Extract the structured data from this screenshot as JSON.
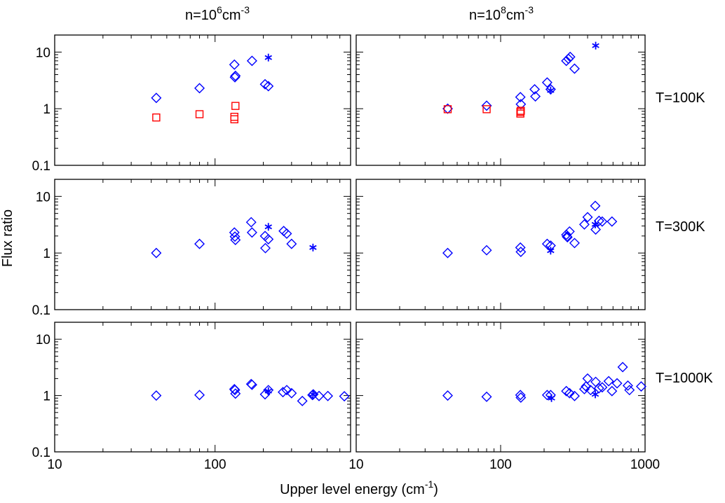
{
  "colors": {
    "diamond": "#0000ff",
    "square": "#ff0000",
    "star": "#0000ff",
    "axis": "#000000"
  },
  "columns": [
    {
      "base": "n=10",
      "exp": "6",
      "unit": "cm",
      "unit_exp": "-3"
    },
    {
      "base": "n=10",
      "exp": "8",
      "unit": "cm",
      "unit_exp": "-3"
    }
  ],
  "rows": [
    "T=100K",
    "T=300K",
    "T=1000K"
  ],
  "ylabel": "Flux ratio",
  "xlabel": {
    "text": "Upper level energy (cm",
    "sup": "-1",
    "close": ")"
  },
  "xticks": [
    "10",
    "100",
    "1000"
  ],
  "yticks": [
    "0.1",
    "1",
    "10"
  ],
  "chart_data": [
    {
      "type": "scatter",
      "panel": "n=10^6 cm^-3, T=100K",
      "xlim": [
        10,
        700
      ],
      "ylim": [
        0.1,
        20
      ],
      "xscale": "log",
      "yscale": "log",
      "series": [
        {
          "marker": "diamond",
          "color": "blue",
          "x": [
            43,
            80,
            132,
            133,
            134,
            170,
            205,
            215
          ],
          "y": [
            1.55,
            2.3,
            6.0,
            3.6,
            3.8,
            7.0,
            2.7,
            2.5
          ]
        },
        {
          "marker": "square",
          "color": "red",
          "x": [
            43,
            80,
            132,
            132,
            134
          ],
          "y": [
            0.7,
            0.8,
            0.65,
            0.72,
            1.12
          ]
        },
        {
          "marker": "star",
          "color": "blue",
          "x": [
            215
          ],
          "y": [
            8.0
          ]
        }
      ]
    },
    {
      "type": "scatter",
      "panel": "n=10^8 cm^-3, T=100K",
      "xlim": [
        10,
        1000
      ],
      "ylim": [
        0.1,
        20
      ],
      "xscale": "log",
      "yscale": "log",
      "series": [
        {
          "marker": "diamond",
          "color": "blue",
          "x": [
            43,
            80,
            137,
            138,
            172,
            174,
            210,
            222,
            285,
            295,
            303,
            325
          ],
          "y": [
            1.0,
            1.13,
            1.6,
            1.2,
            2.2,
            1.65,
            2.9,
            2.2,
            7.0,
            7.6,
            8.2,
            5.1
          ]
        },
        {
          "marker": "square",
          "color": "red",
          "x": [
            43,
            80,
            137,
            137,
            138
          ],
          "y": [
            0.98,
            0.98,
            0.82,
            0.88,
            0.92
          ]
        },
        {
          "marker": "star",
          "color": "blue",
          "x": [
            222,
            455
          ],
          "y": [
            2.1,
            13.0
          ]
        }
      ]
    },
    {
      "type": "scatter",
      "panel": "n=10^6 cm^-3, T=300K",
      "xlim": [
        10,
        700
      ],
      "ylim": [
        0.1,
        20
      ],
      "xscale": "log",
      "yscale": "log",
      "series": [
        {
          "marker": "diamond",
          "color": "blue",
          "x": [
            43,
            80,
            132,
            133,
            134,
            168,
            170,
            205,
            206,
            215,
            268,
            280,
            300
          ],
          "y": [
            1.0,
            1.45,
            2.3,
            1.95,
            1.7,
            3.5,
            2.3,
            2.0,
            1.22,
            1.75,
            2.45,
            2.2,
            1.45
          ]
        },
        {
          "marker": "star",
          "color": "blue",
          "x": [
            215,
            408
          ],
          "y": [
            2.9,
            1.25
          ]
        }
      ]
    },
    {
      "type": "scatter",
      "panel": "n=10^8 cm^-3, T=300K",
      "xlim": [
        10,
        1000
      ],
      "ylim": [
        0.1,
        20
      ],
      "xscale": "log",
      "yscale": "log",
      "series": [
        {
          "marker": "diamond",
          "color": "blue",
          "x": [
            43,
            80,
            137,
            138,
            210,
            222,
            285,
            288,
            290,
            300,
            325,
            380,
            400,
            452,
            455,
            480,
            505,
            590
          ],
          "y": [
            1.0,
            1.12,
            1.25,
            1.05,
            1.45,
            1.35,
            2.1,
            1.95,
            1.9,
            2.4,
            1.5,
            3.2,
            4.3,
            6.8,
            2.6,
            3.7,
            3.6,
            3.6
          ]
        },
        {
          "marker": "star",
          "color": "blue",
          "x": [
            222,
            452
          ],
          "y": [
            1.1,
            3.2
          ]
        }
      ]
    },
    {
      "type": "scatter",
      "panel": "n=10^6 cm^-3, T=1000K",
      "xlim": [
        10,
        700
      ],
      "ylim": [
        0.1,
        20
      ],
      "xscale": "log",
      "yscale": "log",
      "series": [
        {
          "marker": "diamond",
          "color": "blue",
          "x": [
            43,
            80,
            132,
            133,
            134,
            168,
            170,
            205,
            215,
            265,
            280,
            300,
            350,
            405,
            410,
            445,
            505,
            640
          ],
          "y": [
            1.0,
            1.02,
            1.3,
            1.25,
            1.08,
            1.6,
            1.55,
            1.05,
            1.25,
            1.15,
            1.25,
            1.1,
            0.8,
            1.02,
            1.05,
            0.98,
            0.98,
            0.97
          ]
        },
        {
          "marker": "star",
          "color": "blue",
          "x": [
            215,
            408
          ],
          "y": [
            1.2,
            1.05
          ]
        }
      ]
    },
    {
      "type": "scatter",
      "panel": "n=10^8 cm^-3, T=1000K",
      "xlim": [
        10,
        1000
      ],
      "ylim": [
        0.1,
        20
      ],
      "xscale": "log",
      "yscale": "log",
      "series": [
        {
          "marker": "diamond",
          "color": "blue",
          "x": [
            43,
            80,
            137,
            138,
            210,
            222,
            285,
            300,
            325,
            380,
            390,
            400,
            420,
            455,
            480,
            505,
            560,
            590,
            640,
            700,
            760,
            780,
            940
          ],
          "y": [
            1.0,
            0.95,
            1.02,
            0.92,
            1.02,
            1.02,
            1.2,
            1.1,
            0.98,
            1.3,
            1.45,
            2.0,
            1.25,
            1.75,
            1.35,
            1.4,
            1.8,
            1.2,
            1.65,
            3.2,
            1.5,
            1.25,
            1.45
          ]
        },
        {
          "marker": "star",
          "color": "blue",
          "x": [
            225,
            452
          ],
          "y": [
            0.9,
            1.05
          ]
        }
      ]
    }
  ]
}
